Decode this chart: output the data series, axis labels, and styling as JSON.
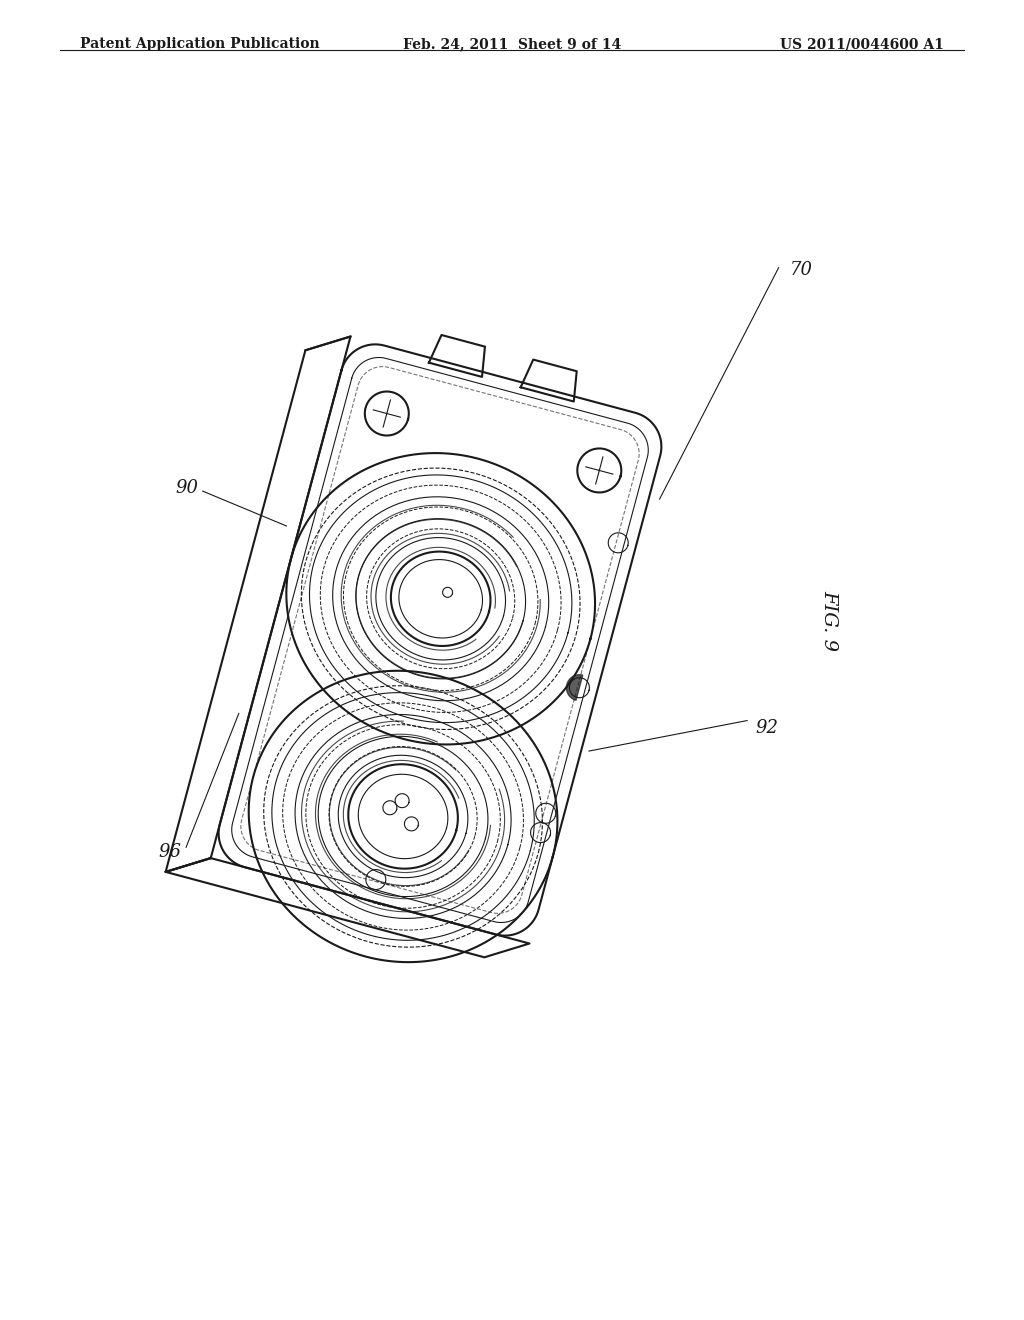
{
  "bg_color": "#ffffff",
  "line_color": "#1a1a1a",
  "header_left": "Patent Application Publication",
  "header_mid": "Feb. 24, 2011  Sheet 9 of 14",
  "header_right": "US 2011/0044600 A1",
  "fig_label": "FIG. 9",
  "ref_labels": [
    "70",
    "90",
    "92",
    "96"
  ],
  "title_fontsize": 11,
  "header_fontsize": 10
}
